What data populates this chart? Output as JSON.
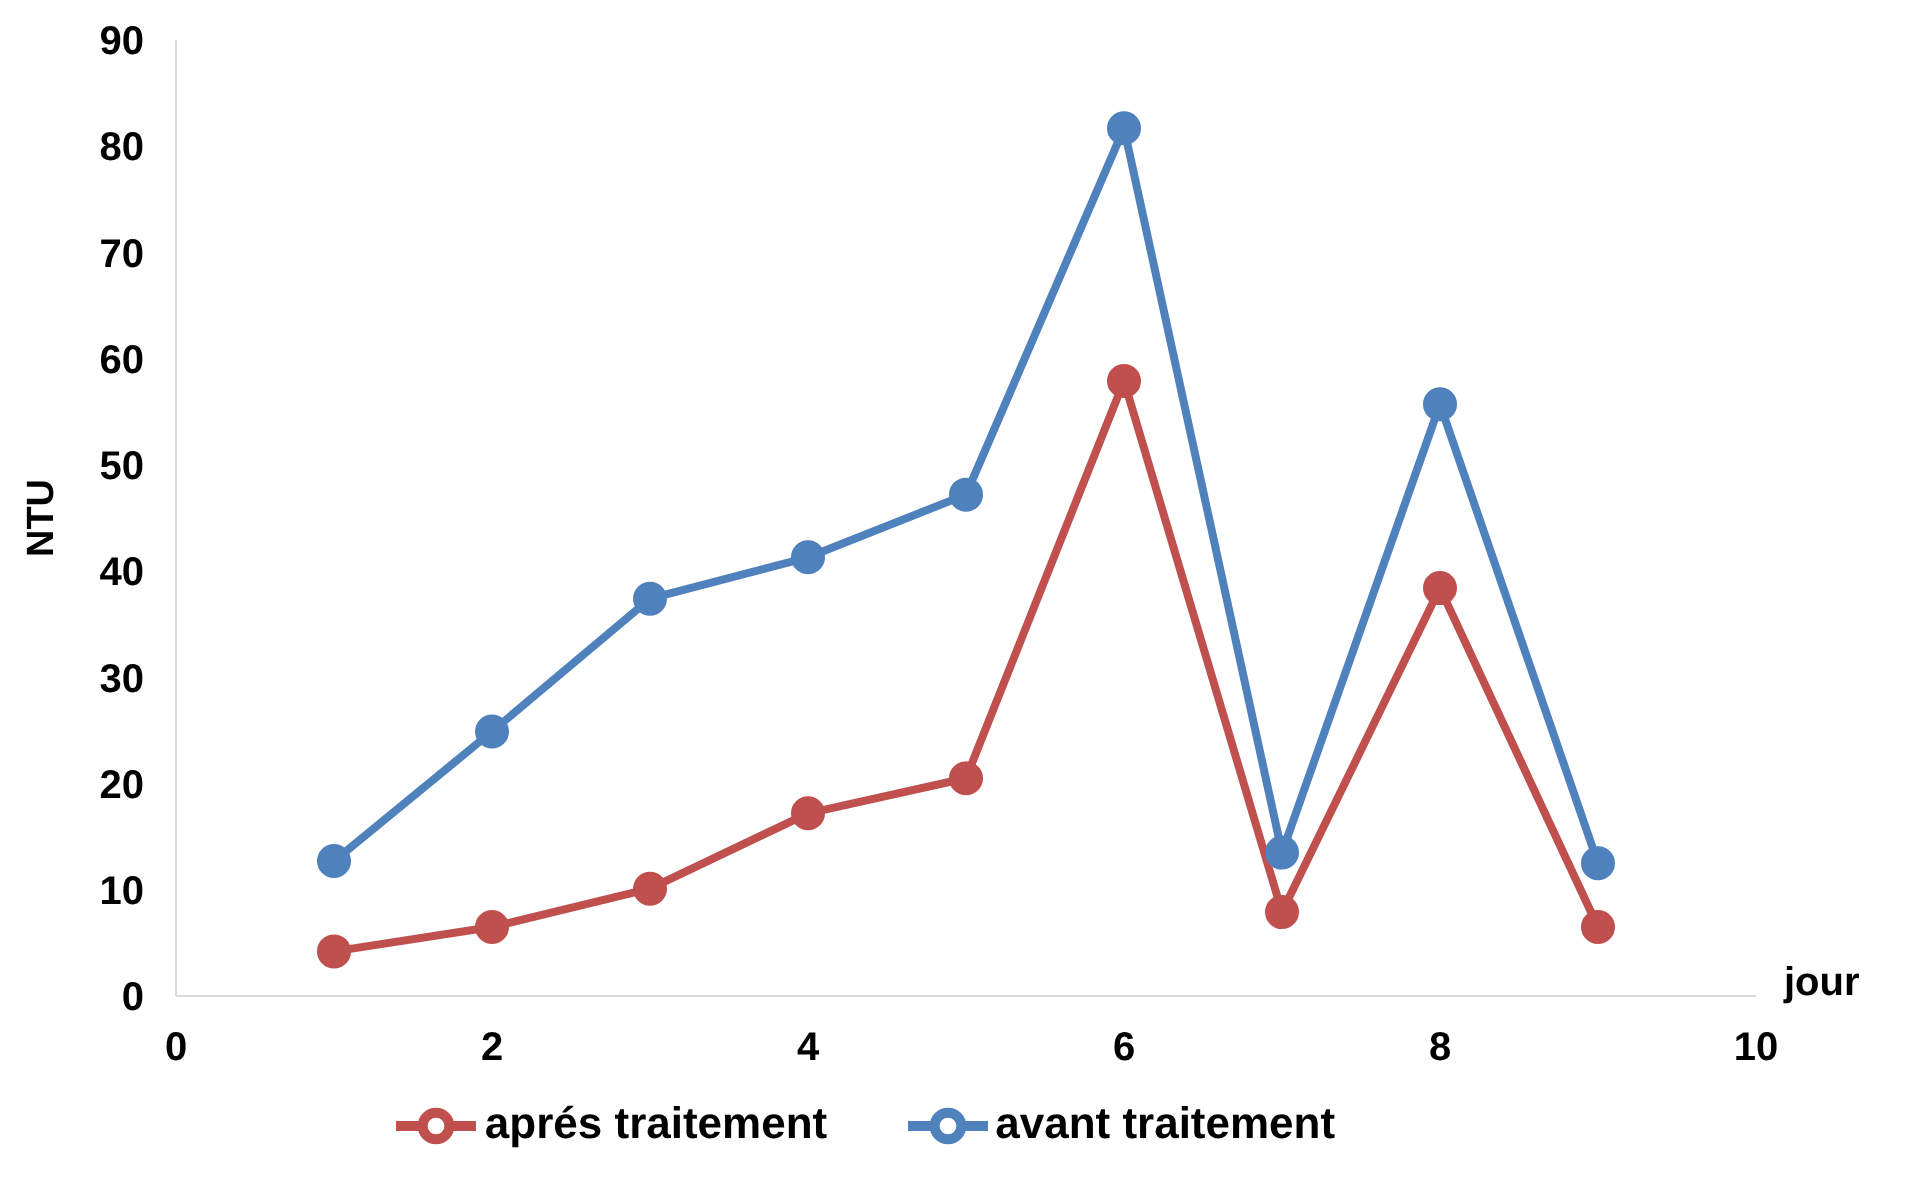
{
  "chart_data": {
    "type": "line",
    "xlabel": "jour",
    "ylabel": "NTU",
    "x": [
      1,
      2,
      3,
      4,
      5,
      6,
      7,
      8,
      9
    ],
    "series": [
      {
        "name": "avant traitement",
        "color": "#4f81bd",
        "values": [
          12.7,
          24.9,
          37.4,
          41.3,
          47.2,
          81.7,
          13.5,
          55.7,
          12.5
        ]
      },
      {
        "name": "aprés traitement",
        "color": "#c0504d",
        "values": [
          4.2,
          6.5,
          10.1,
          17.2,
          20.5,
          57.9,
          7.9,
          38.4,
          6.5
        ]
      }
    ],
    "xlim": [
      0,
      10
    ],
    "xticks": [
      0,
      2,
      4,
      6,
      8,
      10
    ],
    "ylim": [
      0,
      90
    ],
    "yticks": [
      0,
      10,
      20,
      30,
      40,
      50,
      60,
      70,
      80,
      90
    ],
    "grid": false,
    "legend": "bottom",
    "marker": "circle",
    "line_style": "solid"
  }
}
